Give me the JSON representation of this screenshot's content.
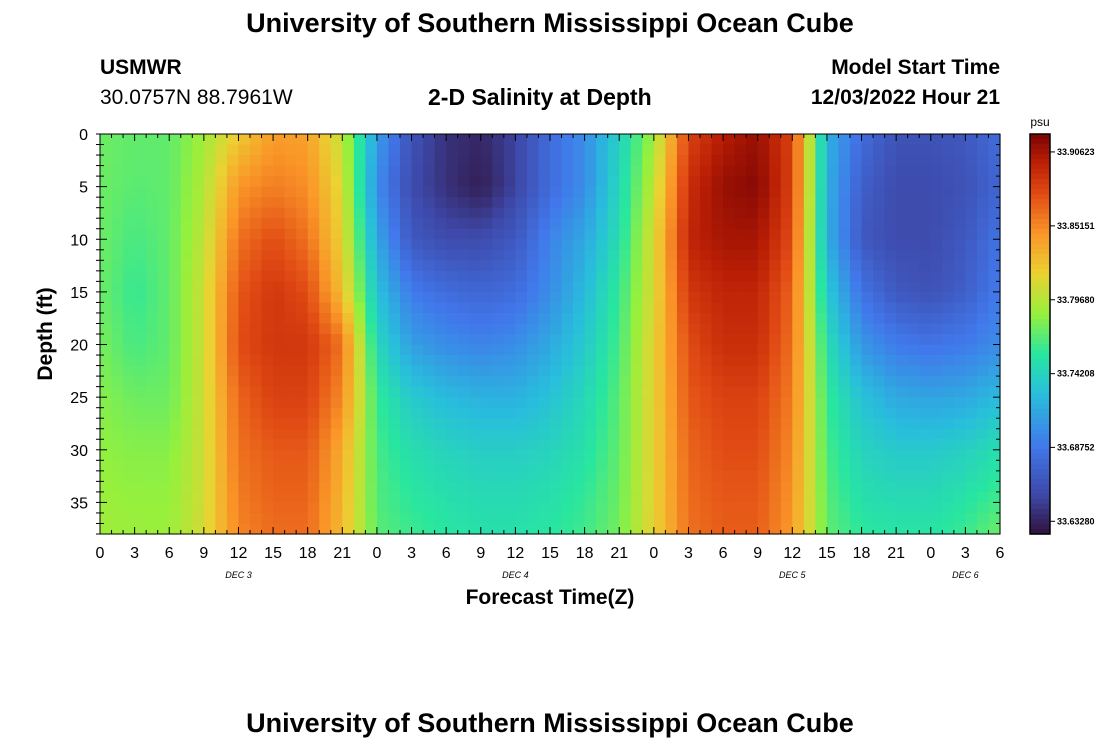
{
  "page": {
    "title": "University of Southern Mississippi Ocean Cube",
    "bottom_title": "University of Southern Mississippi Ocean Cube"
  },
  "header": {
    "station": "USMWR",
    "coords": "30.0757N  88.7961W",
    "plot_title": "2-D Salinity at Depth",
    "start_label": "Model Start Time",
    "start_value": "12/03/2022 Hour 21"
  },
  "chart_data": {
    "type": "heatmap",
    "title": "2-D Salinity at Depth",
    "xlabel": "Forecast Time(Z)",
    "ylabel": "Depth (ft)",
    "x_hours_from_dec3_00z": [
      0,
      78
    ],
    "x_ticks": [
      "0",
      "3",
      "6",
      "9",
      "12",
      "15",
      "18",
      "21",
      "0",
      "3",
      "6",
      "9",
      "12",
      "15",
      "18",
      "21",
      "0",
      "3",
      "6",
      "9",
      "12",
      "15",
      "18",
      "21",
      "0",
      "3",
      "6"
    ],
    "date_labels": [
      {
        "label": "DEC 3",
        "hour": 12
      },
      {
        "label": "DEC 4",
        "hour": 36
      },
      {
        "label": "DEC 5",
        "hour": 60
      },
      {
        "label": "DEC 6",
        "hour": 75
      }
    ],
    "ylim": [
      0,
      38
    ],
    "y_ticks": [
      0,
      5,
      10,
      15,
      20,
      25,
      30,
      35
    ],
    "depths_ft": [
      0,
      5,
      10,
      15,
      20,
      25,
      30,
      35,
      38
    ],
    "times_hours": [
      0,
      3,
      6,
      9,
      12,
      15,
      18,
      21,
      24,
      27,
      30,
      33,
      36,
      39,
      42,
      45,
      48,
      51,
      54,
      57,
      60,
      63,
      66,
      69,
      72,
      75,
      78
    ],
    "salinity_psu": [
      [
        33.775,
        33.772,
        33.772,
        33.79,
        33.82,
        33.842,
        33.84,
        33.8,
        33.71,
        33.66,
        33.64,
        33.635,
        33.65,
        33.68,
        33.7,
        33.74,
        33.79,
        33.88,
        33.9,
        33.91,
        33.88,
        33.72,
        33.68,
        33.66,
        33.66,
        33.665,
        33.68
      ],
      [
        33.775,
        33.77,
        33.772,
        33.795,
        33.845,
        33.855,
        33.848,
        33.81,
        33.7,
        33.655,
        33.64,
        33.63,
        33.65,
        33.68,
        33.7,
        33.745,
        33.8,
        33.89,
        33.91,
        33.915,
        33.88,
        33.72,
        33.67,
        33.655,
        33.655,
        33.66,
        33.675
      ],
      [
        33.775,
        33.765,
        33.772,
        33.8,
        33.86,
        33.875,
        33.86,
        33.815,
        33.715,
        33.665,
        33.655,
        33.655,
        33.665,
        33.695,
        33.715,
        33.75,
        33.81,
        33.895,
        33.905,
        33.905,
        33.875,
        33.72,
        33.665,
        33.655,
        33.655,
        33.665,
        33.685
      ],
      [
        33.775,
        33.76,
        33.772,
        33.805,
        33.87,
        33.885,
        33.875,
        33.825,
        33.73,
        33.69,
        33.68,
        33.675,
        33.68,
        33.7,
        33.725,
        33.76,
        33.81,
        33.885,
        33.895,
        33.895,
        33.865,
        33.735,
        33.685,
        33.665,
        33.66,
        33.67,
        33.69
      ],
      [
        33.778,
        33.765,
        33.772,
        33.805,
        33.875,
        33.885,
        33.885,
        33.86,
        33.745,
        33.71,
        33.7,
        33.695,
        33.7,
        33.715,
        33.735,
        33.765,
        33.815,
        33.875,
        33.89,
        33.89,
        33.86,
        33.75,
        33.705,
        33.69,
        33.685,
        33.69,
        33.7
      ],
      [
        33.782,
        33.775,
        33.775,
        33.805,
        33.865,
        33.88,
        33.88,
        33.85,
        33.76,
        33.735,
        33.725,
        33.72,
        33.72,
        33.73,
        33.745,
        33.77,
        33.815,
        33.87,
        33.88,
        33.88,
        33.855,
        33.76,
        33.73,
        33.715,
        33.712,
        33.715,
        33.725
      ],
      [
        33.785,
        33.782,
        33.782,
        33.805,
        33.86,
        33.87,
        33.87,
        33.835,
        33.765,
        33.75,
        33.742,
        33.738,
        33.738,
        33.742,
        33.752,
        33.772,
        33.815,
        33.865,
        33.875,
        33.875,
        33.85,
        33.765,
        33.742,
        33.735,
        33.735,
        33.74,
        33.75
      ],
      [
        33.788,
        33.786,
        33.786,
        33.806,
        33.855,
        33.865,
        33.865,
        33.83,
        33.768,
        33.758,
        33.752,
        33.748,
        33.748,
        33.752,
        33.76,
        33.775,
        33.815,
        33.862,
        33.87,
        33.87,
        33.845,
        33.77,
        33.752,
        33.748,
        33.748,
        33.755,
        33.765
      ],
      [
        33.79,
        33.788,
        33.788,
        33.808,
        33.852,
        33.862,
        33.862,
        33.828,
        33.77,
        33.762,
        33.756,
        33.752,
        33.752,
        33.756,
        33.763,
        33.777,
        33.815,
        33.86,
        33.868,
        33.868,
        33.843,
        33.772,
        33.758,
        33.755,
        33.755,
        33.762,
        33.775
      ]
    ],
    "vmin": 33.6234,
    "vmax": 33.9195,
    "colorbar": {
      "unit": "psu",
      "ticks": [
        "33.90623",
        "33.85151",
        "33.79680",
        "33.74208",
        "33.68752",
        "33.63280"
      ]
    }
  }
}
